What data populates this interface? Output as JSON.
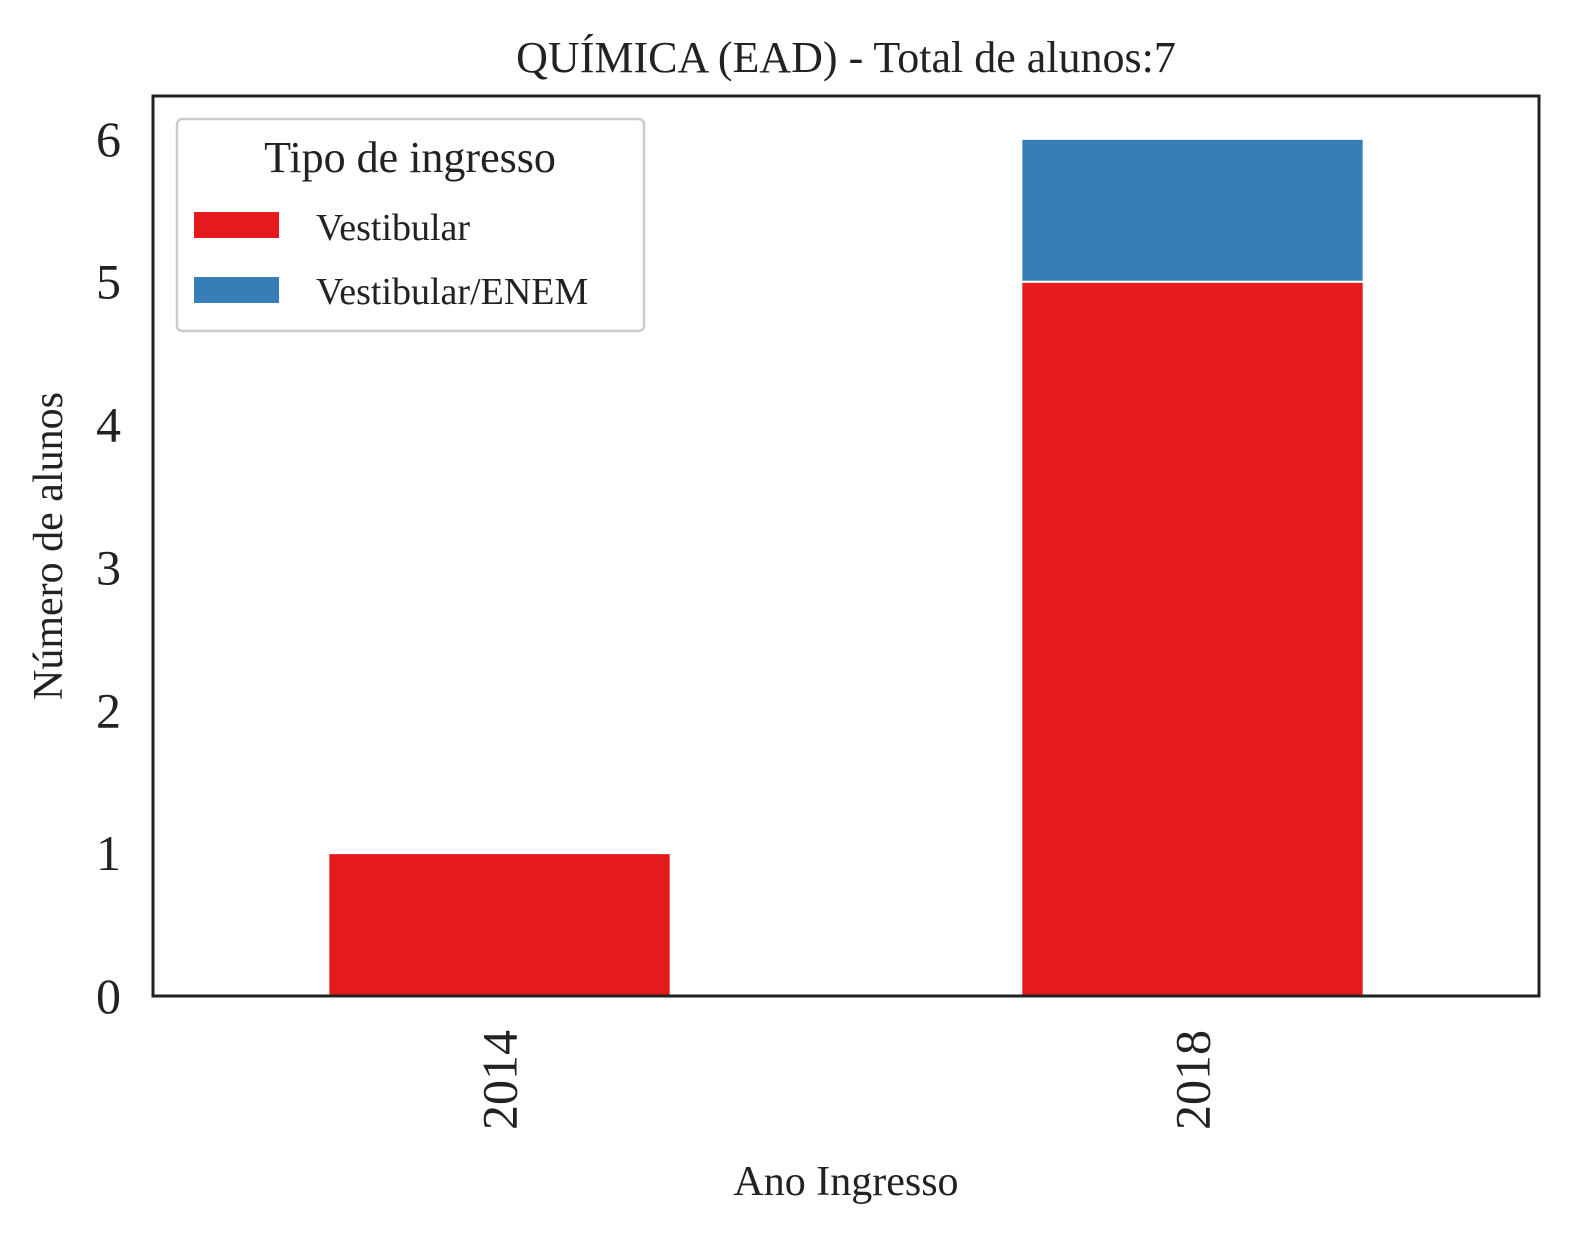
{
  "chart_data": {
    "type": "bar",
    "stacked": true,
    "title": "QUÍMICA (EAD) - Total de alunos:7",
    "xlabel": "Ano Ingresso",
    "ylabel": "Número de alunos",
    "categories": [
      "2014",
      "2018"
    ],
    "series": [
      {
        "name": "Vestibular",
        "values": [
          1,
          5
        ],
        "color": "#e41a1c"
      },
      {
        "name": "Vestibular/ENEM",
        "values": [
          0,
          1
        ],
        "color": "#377eb8"
      }
    ],
    "ylim": [
      0,
      6.3
    ],
    "yticks": [
      "0",
      "1",
      "2",
      "3",
      "4",
      "5",
      "6"
    ],
    "grid": false,
    "legend": {
      "title": "Tipo de ingresso",
      "position": "top-left"
    }
  }
}
